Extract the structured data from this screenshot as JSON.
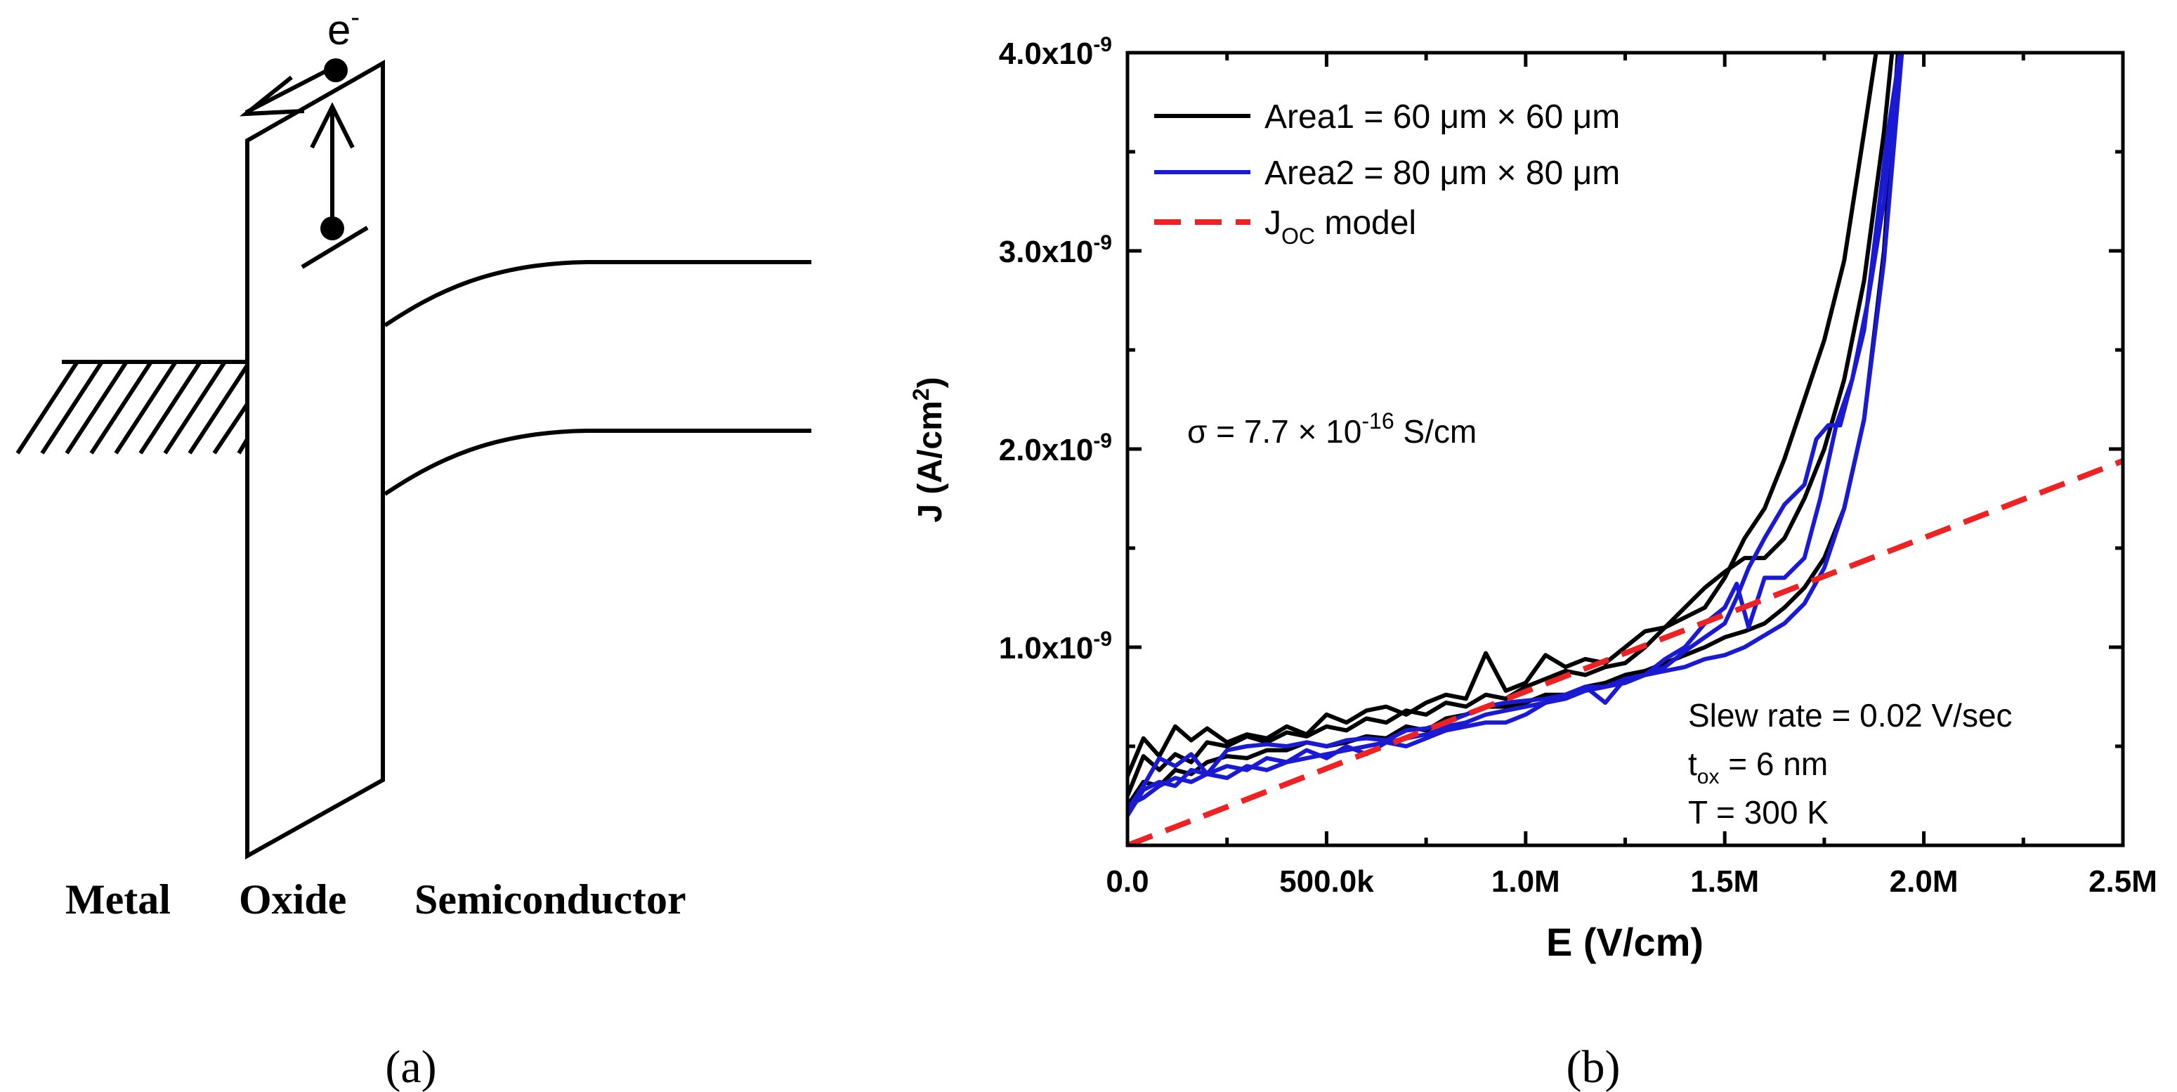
{
  "panel_a": {
    "label": "(a)",
    "electron": "e",
    "electron_sup": "-",
    "region_labels": {
      "metal": "Metal",
      "oxide": "Oxide",
      "semiconductor": "Semiconductor"
    }
  },
  "panel_b": {
    "label": "(b)"
  },
  "chart_data": {
    "type": "line",
    "xlabel": "E (V/cm)",
    "ylabel": "J (A/cm",
    "ylabel_sup": "2",
    "ylabel_end": ")",
    "xlim": [
      0,
      2500000
    ],
    "ylim": [
      0,
      4e-09
    ],
    "x_ticks": [
      {
        "value": 0,
        "label": "0.0"
      },
      {
        "value": 500000,
        "label": "500.0k"
      },
      {
        "value": 1000000,
        "label": "1.0M"
      },
      {
        "value": 1500000,
        "label": "1.5M"
      },
      {
        "value": 2000000,
        "label": "2.0M"
      },
      {
        "value": 2500000,
        "label": "2.5M"
      }
    ],
    "y_ticks": [
      {
        "value": 1e-09,
        "label": "1.0x10",
        "exp": "-9"
      },
      {
        "value": 2e-09,
        "label": "2.0x10",
        "exp": "-9"
      },
      {
        "value": 3e-09,
        "label": "3.0x10",
        "exp": "-9"
      },
      {
        "value": 4e-09,
        "label": "4.0x10",
        "exp": "-9"
      }
    ],
    "grid": false,
    "legend_position": "top-left",
    "legend": [
      {
        "text": "Area1 = 60 μm × 60 μm",
        "sub": "",
        "color": "#000000",
        "dash": false
      },
      {
        "text": "Area2 = 80 μm × 80 μm",
        "sub": "",
        "color": "#1a1ad4",
        "dash": false
      },
      {
        "text": "J",
        "sub": "OC",
        "tail": " model",
        "color": "#ee2222",
        "dash": true
      }
    ],
    "annotations": {
      "sigma_pre": "σ = 7.7 × 10",
      "sigma_exp": "-16",
      "sigma_post": " S/cm",
      "slew": "Slew rate = 0.02 V/sec",
      "tox_pre": "t",
      "tox_sub": "ox",
      "tox_post": " = 6 nm",
      "temp": "T = 300 K"
    },
    "series": [
      {
        "name": "Area1 = 60 μm × 60 μm",
        "color": "#000000",
        "dash": false,
        "x": [
          0,
          40000,
          80000,
          120000,
          160000,
          200000,
          250000,
          300000,
          350000,
          400000,
          450000,
          500000,
          550000,
          600000,
          650000,
          700000,
          750000,
          800000,
          850000,
          900000,
          950000,
          1000000,
          1050000,
          1100000,
          1150000,
          1200000,
          1250000,
          1300000,
          1350000,
          1400000,
          1450000,
          1500000,
          1550000,
          1600000,
          1650000,
          1700000,
          1750000,
          1800000,
          1850000,
          1880000
        ],
        "y": [
          3.5e-10,
          5.4e-10,
          4.5e-10,
          6e-10,
          5.3e-10,
          5.9e-10,
          5.2e-10,
          5.6e-10,
          5.4e-10,
          6e-10,
          5.6e-10,
          6.6e-10,
          6.2e-10,
          6.8e-10,
          7e-10,
          6.6e-10,
          7.2e-10,
          7.6e-10,
          7.4e-10,
          9.7e-10,
          7.8e-10,
          8.2e-10,
          9.6e-10,
          9e-10,
          9.4e-10,
          9.2e-10,
          1e-09,
          1.08e-09,
          1.1e-09,
          1.15e-09,
          1.2e-09,
          1.35e-09,
          1.55e-09,
          1.7e-09,
          1.95e-09,
          2.25e-09,
          2.55e-09,
          2.95e-09,
          3.6e-09,
          4e-09
        ]
      },
      {
        "name": "",
        "color": "#000000",
        "dash": false,
        "x": [
          0,
          40000,
          80000,
          120000,
          160000,
          200000,
          250000,
          300000,
          350000,
          400000,
          450000,
          500000,
          550000,
          600000,
          650000,
          700000,
          750000,
          800000,
          850000,
          900000,
          950000,
          1000000,
          1050000,
          1100000,
          1150000,
          1200000,
          1250000,
          1300000,
          1350000,
          1400000,
          1450000,
          1500000,
          1550000,
          1600000,
          1650000,
          1700000,
          1750000,
          1800000,
          1850000,
          1900000,
          1920000
        ],
        "y": [
          2.5e-10,
          4.5e-10,
          3.8e-10,
          4.6e-10,
          4.2e-10,
          5.2e-10,
          5e-10,
          5.5e-10,
          5.2e-10,
          5.7e-10,
          5.5e-10,
          6e-10,
          5.8e-10,
          6.4e-10,
          6.2e-10,
          6.8e-10,
          6.6e-10,
          7.2e-10,
          7e-10,
          7.6e-10,
          7.4e-10,
          8e-10,
          8.4e-10,
          8.8e-10,
          8.6e-10,
          9e-10,
          9.2e-10,
          1e-09,
          1.1e-09,
          1.2e-09,
          1.3e-09,
          1.38e-09,
          1.45e-09,
          1.45e-09,
          1.55e-09,
          1.75e-09,
          2e-09,
          2.35e-09,
          2.85e-09,
          3.6e-09,
          4e-09
        ]
      },
      {
        "name": "",
        "color": "#000000",
        "dash": false,
        "x": [
          0,
          40000,
          80000,
          120000,
          160000,
          200000,
          250000,
          300000,
          350000,
          400000,
          450000,
          500000,
          550000,
          600000,
          650000,
          700000,
          750000,
          800000,
          850000,
          900000,
          950000,
          1000000,
          1050000,
          1100000,
          1150000,
          1200000,
          1250000,
          1300000,
          1350000,
          1400000,
          1450000,
          1500000,
          1550000,
          1600000,
          1650000,
          1700000,
          1750000,
          1800000,
          1850000,
          1900000,
          1935000
        ],
        "y": [
          2e-10,
          3.2e-10,
          3e-10,
          3.8e-10,
          3.6e-10,
          4.2e-10,
          4.5e-10,
          4.4e-10,
          4.8e-10,
          4.8e-10,
          5.2e-10,
          5e-10,
          5.2e-10,
          5.5e-10,
          5.4e-10,
          6e-10,
          5.8e-10,
          6.4e-10,
          6.6e-10,
          7e-10,
          7e-10,
          7.2e-10,
          7.6e-10,
          7.6e-10,
          8e-10,
          8.2e-10,
          8.6e-10,
          8.8e-10,
          9.2e-10,
          9.6e-10,
          1e-09,
          1.05e-09,
          1.08e-09,
          1.12e-09,
          1.2e-09,
          1.3e-09,
          1.45e-09,
          1.7e-09,
          2.15e-09,
          3e-09,
          4e-09
        ]
      },
      {
        "name": "Area2 = 80 μm × 80 μm",
        "color": "#1a1ad4",
        "dash": false,
        "x": [
          0,
          40000,
          80000,
          120000,
          160000,
          200000,
          250000,
          300000,
          350000,
          400000,
          450000,
          500000,
          550000,
          600000,
          650000,
          700000,
          750000,
          800000,
          850000,
          900000,
          950000,
          1000000,
          1050000,
          1100000,
          1150000,
          1200000,
          1250000,
          1300000,
          1350000,
          1400000,
          1450000,
          1500000,
          1530000,
          1560000,
          1600000,
          1650000,
          1700000,
          1730000,
          1760000,
          1790000,
          1820000,
          1850000,
          1880000,
          1910000,
          1940000
        ],
        "y": [
          1.8e-10,
          3e-10,
          4.4e-10,
          4e-10,
          4.6e-10,
          3.6e-10,
          4.8e-10,
          5e-10,
          5.1e-10,
          5e-10,
          5.2e-10,
          5e-10,
          5.3e-10,
          5.4e-10,
          5.3e-10,
          5.8e-10,
          5.9e-10,
          6.2e-10,
          6.6e-10,
          7e-10,
          7.2e-10,
          7.3e-10,
          7.4e-10,
          7.6e-10,
          8e-10,
          8e-10,
          8.4e-10,
          8.6e-10,
          9e-10,
          9.8e-10,
          1.05e-09,
          1.12e-09,
          1.25e-09,
          1.4e-09,
          1.55e-09,
          1.72e-09,
          1.82e-09,
          2.05e-09,
          2.12e-09,
          2.12e-09,
          2.35e-09,
          2.6e-09,
          3.1e-09,
          3.6e-09,
          4e-09
        ]
      },
      {
        "name": "",
        "color": "#1a1ad4",
        "dash": false,
        "x": [
          0,
          40000,
          80000,
          120000,
          160000,
          200000,
          250000,
          300000,
          350000,
          400000,
          450000,
          500000,
          550000,
          600000,
          650000,
          700000,
          750000,
          800000,
          850000,
          900000,
          950000,
          1000000,
          1050000,
          1100000,
          1150000,
          1200000,
          1250000,
          1300000,
          1350000,
          1400000,
          1450000,
          1500000,
          1530000,
          1560000,
          1600000,
          1650000,
          1700000,
          1740000,
          1780000,
          1820000,
          1860000,
          1900000,
          1940000
        ],
        "y": [
          1.5e-10,
          2.8e-10,
          3.2e-10,
          3e-10,
          3.8e-10,
          3.6e-10,
          4e-10,
          3.8e-10,
          4.4e-10,
          4.2e-10,
          4.8e-10,
          4.4e-10,
          5e-10,
          4.6e-10,
          5.2e-10,
          5e-10,
          5.4e-10,
          5.8e-10,
          6e-10,
          6.2e-10,
          6.2e-10,
          6.6e-10,
          7.2e-10,
          7.6e-10,
          8e-10,
          7.2e-10,
          8.4e-10,
          8.6e-10,
          9.4e-10,
          1e-09,
          1.12e-09,
          1.2e-09,
          1.32e-09,
          1.1e-09,
          1.35e-09,
          1.35e-09,
          1.45e-09,
          1.75e-09,
          2.12e-09,
          2.35e-09,
          2.75e-09,
          3.25e-09,
          4e-09
        ]
      },
      {
        "name": "",
        "color": "#1a1ad4",
        "dash": false,
        "x": [
          0,
          40000,
          80000,
          120000,
          160000,
          200000,
          250000,
          300000,
          350000,
          400000,
          450000,
          500000,
          550000,
          600000,
          650000,
          700000,
          750000,
          800000,
          850000,
          900000,
          950000,
          1000000,
          1050000,
          1100000,
          1150000,
          1200000,
          1250000,
          1300000,
          1350000,
          1400000,
          1450000,
          1500000,
          1550000,
          1600000,
          1650000,
          1700000,
          1750000,
          1800000,
          1850000,
          1900000,
          1945000
        ],
        "y": [
          2e-10,
          2.4e-10,
          3e-10,
          3.4e-10,
          3.2e-10,
          3.6e-10,
          3.4e-10,
          4e-10,
          3.8e-10,
          4.2e-10,
          4.4e-10,
          4.6e-10,
          4.8e-10,
          5e-10,
          5.2e-10,
          5.4e-10,
          5.6e-10,
          6e-10,
          6.2e-10,
          6.6e-10,
          6.8e-10,
          7e-10,
          7.2e-10,
          7.4e-10,
          7.8e-10,
          8e-10,
          8.2e-10,
          8.6e-10,
          8.8e-10,
          9e-10,
          9.4e-10,
          9.6e-10,
          1e-09,
          1.06e-09,
          1.12e-09,
          1.22e-09,
          1.4e-09,
          1.7e-09,
          2.15e-09,
          2.95e-09,
          4e-09
        ]
      },
      {
        "name": "J",
        "color": "#ee2222",
        "dash": true,
        "x": [
          0,
          2500000
        ],
        "y": [
          0.0,
          1.94e-09
        ]
      }
    ]
  }
}
